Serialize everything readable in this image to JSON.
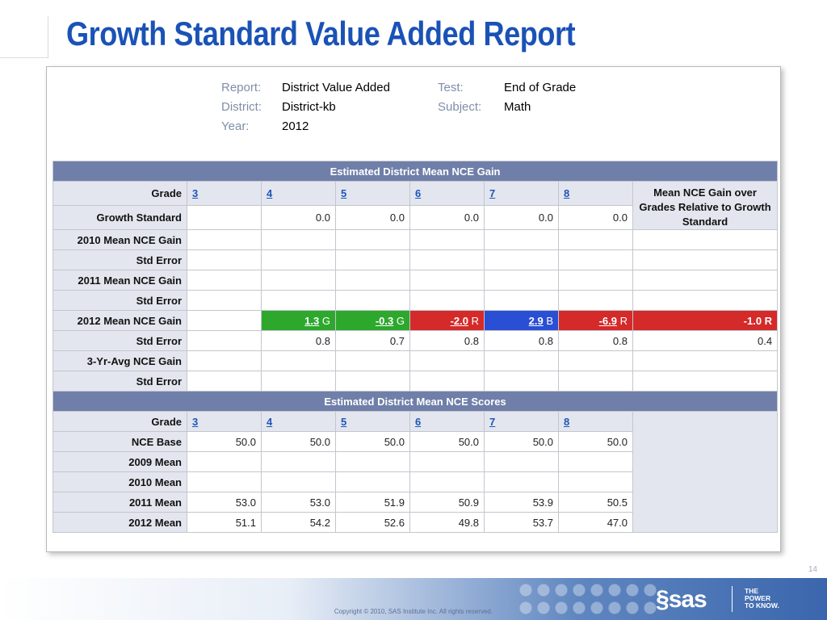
{
  "slide": {
    "title": "Growth Standard Value Added Report",
    "page_number": "14",
    "copyright": "Copyright © 2010, SAS Institute Inc. All rights reserved."
  },
  "brand": {
    "logo_text": "sas",
    "logo_icon": "sas-s-icon",
    "tagline": [
      "THE",
      "POWER",
      "TO KNOW."
    ]
  },
  "meta": {
    "report_label": "Report:",
    "report_value": "District Value Added",
    "test_label": "Test:",
    "test_value": "End of Grade",
    "district_label": "District:",
    "district_value": "District-kb",
    "subject_label": "Subject:",
    "subject_value": "Math",
    "year_label": "Year:",
    "year_value": "2012"
  },
  "gain": {
    "header": "Estimated District Mean NCE Gain",
    "grade_label": "Grade",
    "grades": [
      "3",
      "4",
      "5",
      "6",
      "7",
      "8"
    ],
    "summary_header": "Mean NCE Gain over Grades Relative to Growth Standard",
    "growth_label": "Growth Standard",
    "growth_values": [
      "",
      "0.0",
      "0.0",
      "0.0",
      "0.0",
      "0.0"
    ],
    "mean2010_label": "2010 Mean NCE Gain",
    "stderr_label": "Std Error",
    "mean2011_label": "2011 Mean NCE Gain",
    "mean2012_label": "2012 Mean NCE Gain",
    "mean2012": [
      {
        "value": "1.3",
        "code": "G"
      },
      {
        "value": "-0.3",
        "code": "G"
      },
      {
        "value": "-2.0",
        "code": "R"
      },
      {
        "value": "2.9",
        "code": "B"
      },
      {
        "value": "-6.9",
        "code": "R"
      }
    ],
    "mean2012_total": "-1.0 R",
    "stderr2012": [
      "",
      "0.8",
      "0.7",
      "0.8",
      "0.8",
      "0.8"
    ],
    "stderr2012_total": "0.4",
    "avg3yr_label": "3-Yr-Avg NCE Gain",
    "colors": {
      "G": "#2da82d",
      "R": "#d42a2a",
      "B": "#2a4fd4"
    }
  },
  "scores": {
    "header": "Estimated District Mean NCE Scores",
    "grade_label": "Grade",
    "grades": [
      "3",
      "4",
      "5",
      "6",
      "7",
      "8"
    ],
    "base_label": "NCE Base",
    "base": [
      "50.0",
      "50.0",
      "50.0",
      "50.0",
      "50.0",
      "50.0"
    ],
    "mean2009_label": "2009 Mean",
    "mean2010_label": "2010 Mean",
    "mean2011_label": "2011 Mean",
    "mean2011": [
      "53.0",
      "53.0",
      "51.9",
      "50.9",
      "53.9",
      "50.5"
    ],
    "mean2012_label": "2012 Mean",
    "mean2012": [
      "51.1",
      "54.2",
      "52.6",
      "49.8",
      "53.7",
      "47.0"
    ]
  }
}
